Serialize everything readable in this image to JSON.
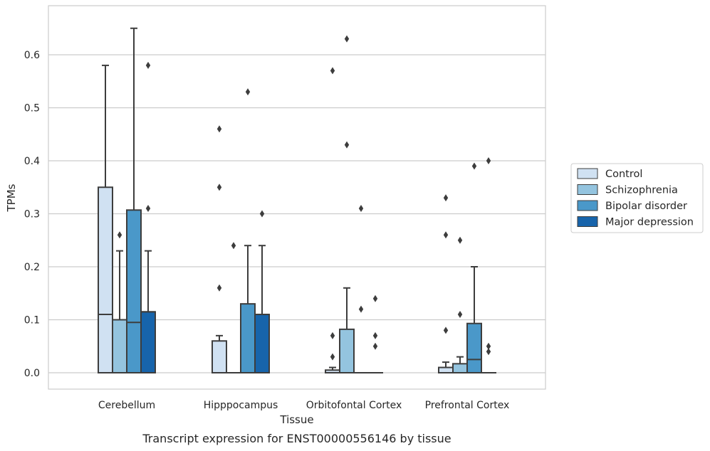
{
  "chart_data": {
    "type": "box",
    "caption": "Transcript expression for ENST00000556146 by tissue",
    "xlabel": "Tissue",
    "ylabel": "TPMs",
    "ylim": [
      -0.032,
      0.685
    ],
    "yticks": [
      0.0,
      0.1,
      0.2,
      0.3,
      0.4,
      0.5,
      0.6
    ],
    "ytick_labels": [
      "0.0",
      "0.1",
      "0.2",
      "0.3",
      "0.4",
      "0.5",
      "0.6"
    ],
    "grid": true,
    "legend_position": "right",
    "categories": [
      "Cerebellum",
      "Hipppocampus",
      "Orbitofontal Cortex",
      "Prefrontal Cortex"
    ],
    "series": [
      {
        "name": "Control",
        "color": "#d0e1f2",
        "boxes": [
          {
            "q1": 0.0,
            "median": 0.11,
            "q3": 0.35,
            "whisker_low": 0.0,
            "whisker_high": 0.58,
            "outliers": []
          },
          {
            "q1": 0.0,
            "median": 0.0,
            "q3": 0.06,
            "whisker_low": 0.0,
            "whisker_high": 0.07,
            "outliers": [
              0.16,
              0.35,
              0.46
            ]
          },
          {
            "q1": 0.0,
            "median": 0.0,
            "q3": 0.005,
            "whisker_low": 0.0,
            "whisker_high": 0.01,
            "outliers": [
              0.03,
              0.07,
              0.57
            ]
          },
          {
            "q1": 0.0,
            "median": 0.0,
            "q3": 0.01,
            "whisker_low": 0.0,
            "whisker_high": 0.02,
            "outliers": [
              0.08,
              0.26,
              0.33
            ]
          }
        ]
      },
      {
        "name": "Schizophrenia",
        "color": "#94c4df",
        "boxes": [
          {
            "q1": 0.0,
            "median": 0.1,
            "q3": 0.1,
            "whisker_low": 0.0,
            "whisker_high": 0.23,
            "outliers": [
              0.26
            ]
          },
          {
            "q1": 0.0,
            "median": 0.0,
            "q3": 0.0,
            "whisker_low": 0.0,
            "whisker_high": 0.0,
            "outliers": [
              0.24
            ]
          },
          {
            "q1": 0.0,
            "median": 0.0,
            "q3": 0.082,
            "whisker_low": 0.0,
            "whisker_high": 0.16,
            "outliers": [
              0.43,
              0.63
            ]
          },
          {
            "q1": 0.0,
            "median": 0.0,
            "q3": 0.017,
            "whisker_low": 0.0,
            "whisker_high": 0.03,
            "outliers": [
              0.11,
              0.25
            ]
          }
        ]
      },
      {
        "name": "Bipolar disorder",
        "color": "#4a98c9",
        "boxes": [
          {
            "q1": 0.0,
            "median": 0.095,
            "q3": 0.307,
            "whisker_low": 0.0,
            "whisker_high": 0.65,
            "outliers": []
          },
          {
            "q1": 0.0,
            "median": 0.0,
            "q3": 0.13,
            "whisker_low": 0.0,
            "whisker_high": 0.24,
            "outliers": [
              0.53
            ]
          },
          {
            "q1": 0.0,
            "median": 0.0,
            "q3": 0.0,
            "whisker_low": 0.0,
            "whisker_high": 0.0,
            "outliers": [
              0.12,
              0.31
            ]
          },
          {
            "q1": 0.0,
            "median": 0.025,
            "q3": 0.093,
            "whisker_low": 0.0,
            "whisker_high": 0.2,
            "outliers": [
              0.39
            ]
          }
        ]
      },
      {
        "name": "Major depression",
        "color": "#1764ab",
        "boxes": [
          {
            "q1": 0.0,
            "median": 0.115,
            "q3": 0.115,
            "whisker_low": 0.0,
            "whisker_high": 0.23,
            "outliers": [
              0.31,
              0.58
            ]
          },
          {
            "q1": 0.0,
            "median": 0.11,
            "q3": 0.11,
            "whisker_low": 0.0,
            "whisker_high": 0.24,
            "outliers": [
              0.3
            ]
          },
          {
            "q1": 0.0,
            "median": 0.0,
            "q3": 0.0,
            "whisker_low": 0.0,
            "whisker_high": 0.0,
            "outliers": [
              0.05,
              0.07,
              0.14
            ]
          },
          {
            "q1": 0.0,
            "median": 0.0,
            "q3": 0.0,
            "whisker_low": 0.0,
            "whisker_high": 0.0,
            "outliers": [
              0.04,
              0.05,
              0.4
            ]
          }
        ]
      }
    ]
  }
}
